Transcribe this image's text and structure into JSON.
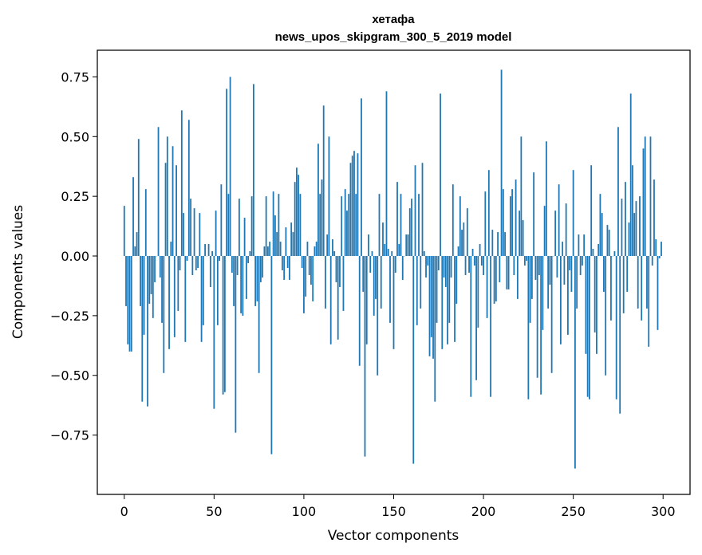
{
  "chart_data": {
    "type": "bar",
    "title_lines": [
      "хетафа",
      "news_upos_skipgram_300_5_2019 model"
    ],
    "xlabel": "Vector components",
    "ylabel": "Components values",
    "xlim": [
      -15,
      315
    ],
    "ylim": [
      -0.9984,
      0.8616
    ],
    "xticks": [
      0,
      50,
      100,
      150,
      200,
      250,
      300
    ],
    "xtick_labels": [
      "0",
      "50",
      "100",
      "150",
      "200",
      "250",
      "300"
    ],
    "yticks": [
      -0.75,
      -0.5,
      -0.25,
      0.0,
      0.25,
      0.5,
      0.75
    ],
    "ytick_labels": [
      "−0.75",
      "−0.50",
      "−0.25",
      "0.00",
      "0.25",
      "0.50",
      "0.75"
    ],
    "bar_color": "#1f77b4",
    "bar_width": 0.8,
    "values": [
      0.21,
      -0.21,
      -0.37,
      -0.4,
      -0.4,
      0.33,
      0.04,
      0.1,
      0.49,
      -0.21,
      -0.61,
      -0.33,
      0.28,
      -0.63,
      -0.2,
      -0.16,
      -0.26,
      -0.11,
      0.0,
      0.54,
      -0.09,
      -0.28,
      -0.49,
      0.39,
      0.5,
      -0.39,
      0.06,
      0.46,
      -0.34,
      0.38,
      -0.23,
      -0.06,
      0.61,
      0.18,
      -0.36,
      -0.02,
      0.57,
      0.24,
      -0.08,
      0.2,
      -0.06,
      -0.05,
      0.18,
      -0.36,
      -0.29,
      0.05,
      0.0,
      0.05,
      -0.13,
      0.02,
      -0.64,
      0.19,
      -0.29,
      -0.02,
      0.3,
      -0.58,
      -0.57,
      0.7,
      0.26,
      0.75,
      -0.07,
      -0.21,
      -0.74,
      -0.08,
      0.24,
      -0.24,
      -0.25,
      0.16,
      -0.18,
      -0.03,
      0.02,
      0.25,
      0.72,
      -0.21,
      -0.19,
      -0.49,
      -0.11,
      -0.09,
      0.04,
      0.25,
      0.04,
      0.06,
      -0.83,
      0.27,
      0.17,
      0.1,
      0.26,
      0.06,
      -0.06,
      -0.1,
      0.12,
      -0.05,
      -0.1,
      0.14,
      0.1,
      0.31,
      0.37,
      0.34,
      0.26,
      -0.05,
      -0.24,
      -0.17,
      0.06,
      -0.08,
      -0.12,
      -0.19,
      0.04,
      0.06,
      0.47,
      0.26,
      0.32,
      0.63,
      -0.22,
      0.09,
      0.5,
      -0.37,
      0.07,
      0.02,
      -0.11,
      -0.35,
      -0.13,
      0.25,
      -0.23,
      0.28,
      0.19,
      0.26,
      0.39,
      0.42,
      0.44,
      0.26,
      0.43,
      -0.46,
      0.66,
      -0.15,
      -0.84,
      -0.37,
      0.09,
      -0.07,
      0.02,
      -0.25,
      -0.18,
      -0.5,
      0.26,
      -0.22,
      0.14,
      0.05,
      0.69,
      0.03,
      -0.28,
      0.02,
      -0.39,
      -0.07,
      0.31,
      0.05,
      0.26,
      -0.1,
      0.0,
      0.09,
      0.09,
      0.2,
      0.24,
      -0.87,
      0.38,
      -0.29,
      0.26,
      -0.22,
      0.39,
      0.02,
      -0.09,
      -0.04,
      -0.42,
      -0.34,
      -0.43,
      -0.61,
      -0.28,
      -0.06,
      0.68,
      -0.39,
      -0.09,
      -0.13,
      -0.37,
      -0.28,
      -0.09,
      0.3,
      -0.36,
      -0.2,
      0.04,
      0.25,
      0.11,
      0.14,
      -0.08,
      0.2,
      -0.07,
      -0.59,
      0.03,
      -0.04,
      -0.52,
      -0.3,
      0.05,
      -0.04,
      -0.08,
      0.27,
      -0.26,
      0.36,
      -0.59,
      0.11,
      -0.2,
      -0.19,
      0.1,
      -0.11,
      0.78,
      0.28,
      0.1,
      -0.14,
      -0.14,
      0.25,
      0.28,
      -0.08,
      0.32,
      -0.18,
      0.19,
      0.5,
      0.15,
      -0.04,
      -0.02,
      -0.6,
      -0.28,
      -0.18,
      0.35,
      -0.1,
      -0.51,
      -0.08,
      -0.58,
      -0.31,
      0.21,
      0.48,
      -0.22,
      -0.12,
      -0.49,
      0.0,
      0.19,
      -0.09,
      0.3,
      -0.37,
      0.06,
      -0.12,
      0.22,
      -0.33,
      -0.06,
      -0.15,
      0.36,
      -0.89,
      -0.22,
      0.09,
      -0.08,
      -0.04,
      0.09,
      -0.41,
      -0.59,
      -0.6,
      0.38,
      0.03,
      -0.32,
      -0.41,
      0.05,
      0.26,
      0.18,
      -0.15,
      -0.5,
      0.13,
      0.11,
      -0.27,
      0.0,
      0.02,
      -0.6,
      0.54,
      -0.66,
      0.24,
      -0.24,
      0.31,
      -0.15,
      0.14,
      0.68,
      0.38,
      0.18,
      0.23,
      -0.22,
      0.25,
      -0.27,
      0.45,
      0.5,
      -0.22,
      -0.38,
      0.5,
      -0.04,
      0.32,
      0.07,
      -0.31,
      -0.01,
      0.06
    ]
  }
}
